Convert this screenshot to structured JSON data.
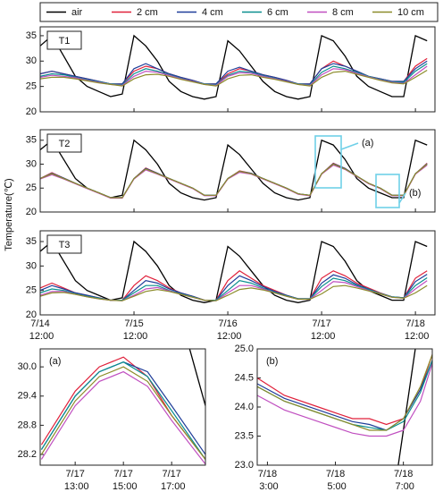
{
  "chart_data": [
    {
      "type": "line",
      "title": "T1",
      "xlim": [
        0,
        101
      ],
      "xticks": [
        0,
        24,
        48,
        72,
        96
      ],
      "ylim": [
        20,
        36.75
      ],
      "yticks": [
        20,
        25,
        30,
        35
      ],
      "x": [
        0,
        3,
        6,
        9,
        12,
        15,
        18,
        21,
        24,
        27,
        30,
        33,
        36,
        39,
        42,
        45,
        48,
        51,
        54,
        57,
        60,
        63,
        66,
        69,
        72,
        75,
        78,
        81,
        84,
        87,
        90,
        93,
        96,
        99
      ],
      "series": [
        {
          "name": "air",
          "color": "#000000",
          "values": [
            33,
            35,
            31,
            27,
            25,
            24,
            23,
            23.5,
            35,
            33,
            30,
            26,
            24,
            23,
            22.5,
            23,
            34,
            32,
            29,
            26,
            24,
            23,
            22.5,
            23,
            35,
            34,
            31,
            27,
            25,
            24,
            23,
            23,
            35,
            34
          ]
        },
        {
          "name": "2 cm",
          "color": "#e0213b",
          "values": [
            27.5,
            28,
            27.5,
            27,
            26.5,
            26,
            25.5,
            25.5,
            28,
            29,
            28.5,
            27.5,
            26.8,
            26.2,
            25.5,
            25.5,
            27.5,
            28.5,
            28,
            27.3,
            26.8,
            26.2,
            25.5,
            25.5,
            28.5,
            30,
            29,
            28,
            27,
            26.5,
            26,
            26,
            29,
            30.5
          ]
        },
        {
          "name": "4 cm",
          "color": "#1f3d99",
          "values": [
            27.5,
            28,
            27.5,
            27,
            26.5,
            26,
            25.5,
            25.5,
            28.5,
            29.5,
            28.5,
            27.5,
            26.8,
            26.2,
            25.5,
            25.5,
            28,
            28.8,
            28,
            27.3,
            26.8,
            26.2,
            25.5,
            25.5,
            28.5,
            29.5,
            29,
            28,
            27,
            26.5,
            26,
            26,
            28.5,
            30
          ]
        },
        {
          "name": "6 cm",
          "color": "#0a8f8f",
          "values": [
            27,
            27.5,
            27.3,
            26.8,
            26.3,
            25.9,
            25.5,
            25.3,
            27.5,
            28.5,
            28,
            27.3,
            26.6,
            26,
            25.5,
            25.3,
            27.2,
            28,
            27.8,
            27.1,
            26.6,
            26,
            25.5,
            25.3,
            27.8,
            29,
            28.5,
            27.8,
            27,
            26.4,
            25.9,
            25.8,
            28,
            29.5
          ]
        },
        {
          "name": "8 cm",
          "color": "#c04fc0",
          "values": [
            26.8,
            27.2,
            27,
            26.7,
            26.2,
            25.8,
            25.4,
            25.2,
            27,
            28,
            27.8,
            27.2,
            26.5,
            26,
            25.4,
            25.2,
            27,
            27.7,
            27.6,
            27,
            26.5,
            26,
            25.4,
            25.2,
            27.3,
            28.5,
            28.3,
            27.6,
            26.9,
            26.3,
            25.8,
            25.6,
            27.3,
            29
          ]
        },
        {
          "name": "10 cm",
          "color": "#8c8c2a",
          "values": [
            26.5,
            26.8,
            26.8,
            26.5,
            26.1,
            25.7,
            25.4,
            25.1,
            26.5,
            27.3,
            27.4,
            27,
            26.4,
            25.9,
            25.4,
            25.1,
            26.5,
            27.2,
            27.3,
            26.8,
            26.4,
            25.9,
            25.4,
            25.1,
            26.8,
            27.8,
            28,
            27.4,
            26.8,
            26.2,
            25.7,
            25.5,
            26.8,
            28.2
          ]
        }
      ]
    },
    {
      "type": "line",
      "title": "T2",
      "ylabel": "Temperature(℃)",
      "annotations": [
        "(a)",
        "(b)"
      ],
      "xlim": [
        0,
        101
      ],
      "xticks": [
        0,
        24,
        48,
        72,
        96
      ],
      "ylim": [
        20,
        37.2
      ],
      "yticks": [
        20,
        25,
        30,
        35
      ],
      "x": [
        0,
        3,
        6,
        9,
        12,
        15,
        18,
        21,
        24,
        27,
        30,
        33,
        36,
        39,
        42,
        45,
        48,
        51,
        54,
        57,
        60,
        63,
        66,
        69,
        72,
        75,
        78,
        81,
        84,
        87,
        90,
        93,
        96,
        99
      ],
      "series": [
        {
          "values": [
            33,
            35,
            31,
            27,
            25,
            24,
            23,
            23.5,
            35,
            33,
            30,
            26,
            24,
            23,
            22.5,
            23,
            34,
            32,
            29,
            26,
            24,
            23,
            22.5,
            23,
            35,
            34,
            31,
            27,
            25,
            24,
            23,
            23,
            35,
            34
          ]
        },
        {
          "values": [
            27,
            28.2,
            27.1,
            26,
            25,
            24,
            23,
            23,
            27,
            29.2,
            28.1,
            27,
            26,
            25,
            23.5,
            23.5,
            27,
            28.6,
            28.1,
            27,
            26,
            25,
            23.8,
            23.5,
            28,
            30.2,
            29.1,
            27.5,
            26,
            25,
            23.5,
            23.5,
            28,
            30.2
          ]
        },
        {
          "values": [
            27,
            28.1,
            27.1,
            26,
            25,
            24,
            23,
            23,
            27,
            29.1,
            28.1,
            27,
            26,
            25,
            23.5,
            23.5,
            27,
            28.5,
            28.1,
            27,
            26,
            25,
            23.8,
            23.5,
            28,
            30.1,
            29.1,
            27.5,
            26,
            25,
            23.5,
            23.5,
            28,
            30.1
          ]
        },
        {
          "values": [
            27,
            28,
            27,
            26,
            25,
            24,
            23,
            23,
            27,
            29,
            28,
            27,
            26,
            25,
            23.5,
            23.5,
            27,
            28.5,
            28,
            27,
            26,
            25,
            23.8,
            23.5,
            28,
            30,
            29,
            27.5,
            26,
            25,
            23.5,
            23.5,
            28,
            30
          ]
        },
        {
          "values": [
            26.9,
            27.8,
            26.9,
            25.9,
            24.9,
            23.9,
            22.9,
            22.9,
            26.9,
            28.8,
            27.9,
            26.9,
            25.9,
            24.9,
            23.4,
            23.4,
            26.9,
            28.3,
            27.9,
            26.9,
            25.9,
            24.9,
            23.7,
            23.4,
            27.9,
            29.8,
            28.9,
            27.4,
            25.9,
            24.9,
            23.4,
            23.4,
            27.9,
            29.8
          ]
        },
        {
          "values": [
            27,
            28,
            27,
            26,
            25,
            24,
            23,
            23,
            27,
            29,
            28,
            27,
            26,
            25,
            23.5,
            23.5,
            27,
            28.5,
            28,
            27,
            26,
            25,
            23.8,
            23.5,
            28,
            30,
            29,
            27.5,
            26,
            25,
            23.5,
            23.5,
            28,
            30
          ]
        }
      ]
    },
    {
      "type": "line",
      "title": "T3",
      "xlim": [
        0,
        101
      ],
      "xticks": [
        {
          "value": 0,
          "label": "7/14 12:00"
        },
        {
          "value": 24,
          "label": "7/15 12:00"
        },
        {
          "value": 48,
          "label": "7/16 12:00"
        },
        {
          "value": 72,
          "label": "7/17 12:00"
        },
        {
          "value": 96,
          "label": "7/18 12:00"
        }
      ],
      "ylim": [
        20,
        37.2
      ],
      "yticks": [
        20,
        25,
        30,
        35
      ],
      "x": [
        0,
        3,
        6,
        9,
        12,
        15,
        18,
        21,
        24,
        27,
        30,
        33,
        36,
        39,
        42,
        45,
        48,
        51,
        54,
        57,
        60,
        63,
        66,
        69,
        72,
        75,
        78,
        81,
        84,
        87,
        90,
        93,
        96,
        99
      ],
      "series": [
        {
          "values": [
            33,
            35,
            31,
            27,
            25,
            24,
            23,
            23.5,
            35,
            33,
            30,
            26,
            24,
            23,
            22.5,
            23,
            34,
            32,
            29,
            26,
            24,
            23,
            22.5,
            23,
            35,
            34,
            31,
            27,
            25,
            24,
            23,
            23,
            35,
            34
          ]
        },
        {
          "values": [
            25.5,
            26.5,
            25.5,
            24.5,
            24,
            23.5,
            23,
            23,
            26,
            28,
            27,
            25.5,
            24.5,
            23.8,
            23,
            23,
            27,
            29,
            27.5,
            26,
            25,
            24,
            23.3,
            23.3,
            27.5,
            29,
            28,
            26.5,
            25.5,
            24.5,
            23.7,
            23.5,
            27.5,
            29
          ]
        },
        {
          "values": [
            25,
            26,
            25.3,
            24.5,
            24,
            23.5,
            23,
            23,
            25,
            27,
            26.5,
            25.3,
            24.5,
            23.8,
            23,
            23,
            26,
            28,
            27,
            25.8,
            24.8,
            24,
            23.3,
            23.3,
            26.5,
            28.2,
            27.5,
            26.2,
            25.3,
            24.4,
            23.7,
            23.5,
            26.8,
            28.3
          ]
        },
        {
          "values": [
            24.5,
            25.3,
            25,
            24.3,
            23.8,
            23.4,
            23,
            23,
            24.5,
            26,
            26,
            25,
            24.3,
            23.7,
            23,
            23,
            25,
            27,
            26.5,
            25.5,
            24.6,
            23.9,
            23.3,
            23.3,
            25.8,
            27.5,
            27,
            26,
            25.2,
            24.4,
            23.7,
            23.5,
            26,
            27.6
          ]
        },
        {
          "values": [
            24,
            24.8,
            24.8,
            24.2,
            23.7,
            23.3,
            23,
            22.9,
            24,
            25.3,
            25.6,
            24.9,
            24.2,
            23.6,
            23,
            22.9,
            24.5,
            26,
            26,
            25.3,
            24.5,
            23.8,
            23.2,
            23.2,
            25,
            26.8,
            26.6,
            25.8,
            25,
            24.3,
            23.6,
            23.4,
            25.3,
            27
          ]
        },
        {
          "values": [
            23.8,
            24.5,
            24.6,
            24.2,
            23.7,
            23.3,
            23,
            22.9,
            23.8,
            24.8,
            25.2,
            24.8,
            24.2,
            23.6,
            23,
            22.9,
            24,
            25.2,
            25.5,
            25.1,
            24.5,
            23.8,
            23.2,
            23.2,
            24.3,
            25.8,
            26,
            25.5,
            24.9,
            24.3,
            23.6,
            23.4,
            24.5,
            26
          ]
        }
      ]
    },
    {
      "type": "line",
      "title": "(a)",
      "xlim": [
        11.55,
        18.4
      ],
      "xticks": [
        {
          "value": 13,
          "label": "7/17 13:00"
        },
        {
          "value": 15,
          "label": "7/17 15:00"
        },
        {
          "value": 17,
          "label": "7/17 17:00"
        }
      ],
      "ylim": [
        27.98,
        30.37
      ],
      "yticks": [
        28.2,
        28.8,
        29.4,
        {
          "value": 30,
          "label": "30.0"
        }
      ],
      "x": [
        11.6,
        13,
        14,
        15,
        16,
        17,
        18.4
      ],
      "series": [
        {
          "x": [
            17.7,
            18.4
          ],
          "values": [
            30.45,
            29.2
          ]
        },
        {
          "values": [
            28.4,
            29.5,
            30.0,
            30.2,
            29.8,
            29.0,
            28.1
          ]
        },
        {
          "values": [
            28.3,
            29.4,
            29.9,
            30.1,
            29.9,
            29.2,
            28.2
          ]
        },
        {
          "values": [
            28.3,
            29.4,
            29.9,
            30.1,
            29.8,
            29.1,
            28.1
          ]
        },
        {
          "values": [
            28.1,
            29.2,
            29.7,
            29.9,
            29.6,
            28.9,
            28.0
          ]
        },
        {
          "values": [
            28.2,
            29.3,
            29.8,
            30.0,
            29.7,
            29.0,
            28.1
          ]
        }
      ]
    },
    {
      "type": "line",
      "title": "(b)",
      "xlim": [
        2.7,
        7.85
      ],
      "xticks": [
        {
          "value": 3,
          "label": "7/18 3:00"
        },
        {
          "value": 5,
          "label": "7/18 5:00"
        },
        {
          "value": 7,
          "label": "7/18 7:00"
        }
      ],
      "ylim": [
        23,
        25
      ],
      "yticks": [
        {
          "value": 23,
          "label": "23.0"
        },
        23.5,
        {
          "value": 24,
          "label": "24.0"
        },
        24.5,
        {
          "value": 25,
          "label": "25.0"
        }
      ],
      "x": [
        2.7,
        3.5,
        4.5,
        5.5,
        6,
        6.5,
        7,
        7.5,
        7.85
      ],
      "series": [
        {
          "x": [
            6.85,
            7.35
          ],
          "values": [
            23,
            25
          ]
        },
        {
          "values": [
            24.5,
            24.2,
            24.0,
            23.8,
            23.8,
            23.7,
            23.8,
            24.3,
            24.9
          ]
        },
        {
          "values": [
            24.4,
            24.15,
            23.95,
            23.75,
            23.7,
            23.6,
            23.8,
            24.3,
            24.8
          ]
        },
        {
          "values": [
            24.35,
            24.1,
            23.9,
            23.7,
            23.65,
            23.6,
            23.75,
            24.25,
            24.8
          ]
        },
        {
          "values": [
            24.2,
            23.95,
            23.75,
            23.55,
            23.5,
            23.5,
            23.6,
            24.1,
            24.75
          ]
        },
        {
          "values": [
            24.35,
            24.1,
            23.9,
            23.7,
            23.6,
            23.6,
            23.8,
            24.35,
            24.9
          ]
        }
      ]
    }
  ]
}
